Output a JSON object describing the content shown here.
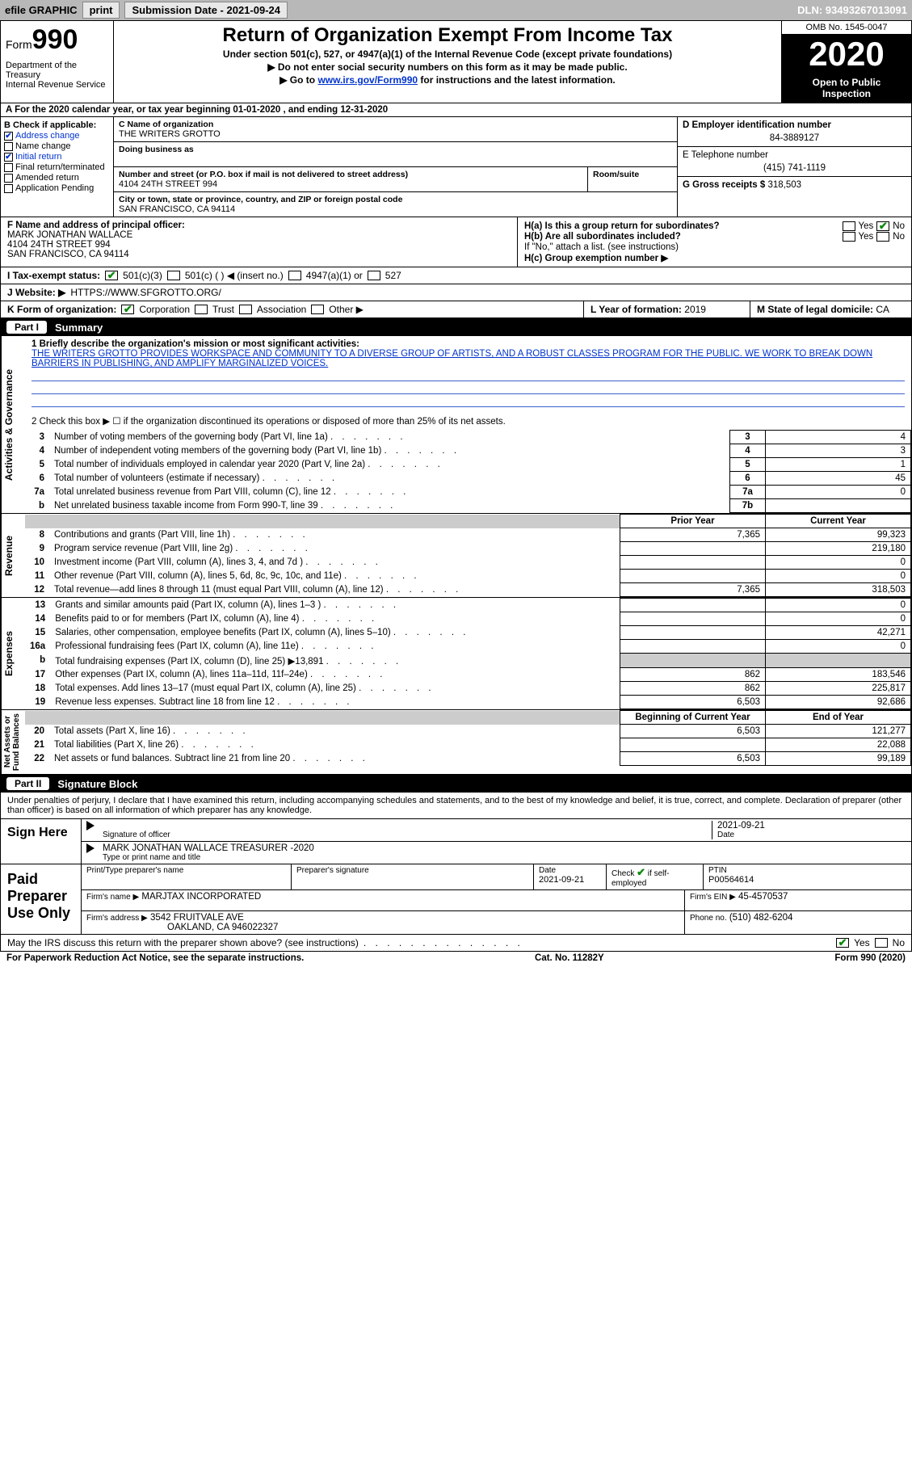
{
  "topbar": {
    "efile": "efile GRAPHIC",
    "print": "print",
    "sub_label": "Submission Date - 2021-09-24",
    "dln": "DLN: 93493267013091"
  },
  "header": {
    "form": "Form",
    "num": "990",
    "dept": "Department of the Treasury\nInternal Revenue Service",
    "title": "Return of Organization Exempt From Income Tax",
    "sub1": "Under section 501(c), 527, or 4947(a)(1) of the Internal Revenue Code (except private foundations)",
    "sub2": "▶ Do not enter social security numbers on this form as it may be made public.",
    "sub3_pre": "▶ Go to ",
    "sub3_link": "www.irs.gov/Form990",
    "sub3_post": " for instructions and the latest information.",
    "omb": "OMB No. 1545-0047",
    "year": "2020",
    "open": "Open to Public\nInspection"
  },
  "a_line": "A For the 2020 calendar year, or tax year beginning 01-01-2020    , and ending 12-31-2020",
  "b": {
    "title": "B Check if applicable:",
    "items": [
      {
        "label": "Address change",
        "checked": true,
        "blue": true
      },
      {
        "label": "Name change",
        "checked": false
      },
      {
        "label": "Initial return",
        "checked": true,
        "blue": true
      },
      {
        "label": "Final return/terminated",
        "checked": false
      },
      {
        "label": "Amended return",
        "checked": false
      },
      {
        "label": "Application Pending",
        "checked": false
      }
    ]
  },
  "c": {
    "name_lbl": "C Name of organization",
    "name": "THE WRITERS GROTTO",
    "dba_lbl": "Doing business as",
    "addr_lbl": "Number and street (or P.O. box if mail is not delivered to street address)",
    "room_lbl": "Room/suite",
    "addr": "4104 24TH STREET 994",
    "city_lbl": "City or town, state or province, country, and ZIP or foreign postal code",
    "city": "SAN FRANCISCO, CA  94114"
  },
  "d": {
    "lbl": "D Employer identification number",
    "val": "84-3889127"
  },
  "e": {
    "lbl": "E Telephone number",
    "val": "(415) 741-1119"
  },
  "g": {
    "lbl": "G Gross receipts $",
    "val": "318,503"
  },
  "f": {
    "lbl": "F Name and address of principal officer:",
    "name": "MARK JONATHAN WALLACE",
    "addr": "4104 24TH STREET 994",
    "city": "SAN FRANCISCO, CA  94114"
  },
  "h": {
    "a_lbl": "H(a)  Is this a group return for subordinates?",
    "a_yes": "Yes",
    "a_no": "No",
    "b_lbl": "H(b)  Are all subordinates included?",
    "b_yes": "Yes",
    "b_no": "No",
    "b_note": "If \"No,\" attach a list. (see instructions)",
    "c_lbl": "H(c)  Group exemption number ▶"
  },
  "i": {
    "lbl": "I    Tax-exempt status:",
    "o1": "501(c)(3)",
    "o2": "501(c) (  ) ◀ (insert no.)",
    "o3": "4947(a)(1) or",
    "o4": "527"
  },
  "j": {
    "lbl": "J   Website: ▶",
    "val": "HTTPS://WWW.SFGROTTO.ORG/"
  },
  "k": {
    "lbl": "K Form of organization:",
    "o1": "Corporation",
    "o2": "Trust",
    "o3": "Association",
    "o4": "Other ▶"
  },
  "l": {
    "lbl": "L Year of formation:",
    "val": "2019"
  },
  "m": {
    "lbl": "M State of legal domicile:",
    "val": "CA"
  },
  "part1": {
    "num": "Part I",
    "title": "Summary"
  },
  "summary": {
    "q1_lbl": "1  Briefly describe the organization's mission or most significant activities:",
    "q1_text": "THE WRITERS GROTTO PROVIDES WORKSPACE AND COMMUNITY TO A DIVERSE GROUP OF ARTISTS, AND A ROBUST CLASSES PROGRAM FOR THE PUBLIC. WE WORK TO BREAK DOWN BARRIERS IN PUBLISHING, AND AMPLIFY MARGINALIZED VOICES.",
    "q2": "2   Check this box ▶ ☐  if the organization discontinued its operations or disposed of more than 25% of its net assets."
  },
  "gov_rows": [
    {
      "n": "3",
      "t": "Number of voting members of the governing body (Part VI, line 1a)",
      "ln": "3",
      "v": "4"
    },
    {
      "n": "4",
      "t": "Number of independent voting members of the governing body (Part VI, line 1b)",
      "ln": "4",
      "v": "3"
    },
    {
      "n": "5",
      "t": "Total number of individuals employed in calendar year 2020 (Part V, line 2a)",
      "ln": "5",
      "v": "1"
    },
    {
      "n": "6",
      "t": "Total number of volunteers (estimate if necessary)",
      "ln": "6",
      "v": "45"
    },
    {
      "n": "7a",
      "t": "Total unrelated business revenue from Part VIII, column (C), line 12",
      "ln": "7a",
      "v": "0"
    },
    {
      "n": "b",
      "t": "Net unrelated business taxable income from Form 990-T, line 39",
      "ln": "7b",
      "v": ""
    }
  ],
  "py_cy": {
    "py": "Prior Year",
    "cy": "Current Year"
  },
  "rev_rows": [
    {
      "n": "8",
      "t": "Contributions and grants (Part VIII, line 1h)",
      "py": "7,365",
      "cy": "99,323"
    },
    {
      "n": "9",
      "t": "Program service revenue (Part VIII, line 2g)",
      "py": "",
      "cy": "219,180"
    },
    {
      "n": "10",
      "t": "Investment income (Part VIII, column (A), lines 3, 4, and 7d )",
      "py": "",
      "cy": "0"
    },
    {
      "n": "11",
      "t": "Other revenue (Part VIII, column (A), lines 5, 6d, 8c, 9c, 10c, and 11e)",
      "py": "",
      "cy": "0"
    },
    {
      "n": "12",
      "t": "Total revenue—add lines 8 through 11 (must equal Part VIII, column (A), line 12)",
      "py": "7,365",
      "cy": "318,503"
    }
  ],
  "exp_rows": [
    {
      "n": "13",
      "t": "Grants and similar amounts paid (Part IX, column (A), lines 1–3 )",
      "py": "",
      "cy": "0"
    },
    {
      "n": "14",
      "t": "Benefits paid to or for members (Part IX, column (A), line 4)",
      "py": "",
      "cy": "0"
    },
    {
      "n": "15",
      "t": "Salaries, other compensation, employee benefits (Part IX, column (A), lines 5–10)",
      "py": "",
      "cy": "42,271"
    },
    {
      "n": "16a",
      "t": "Professional fundraising fees (Part IX, column (A), line 11e)",
      "py": "",
      "cy": "0"
    },
    {
      "n": "b",
      "t": "Total fundraising expenses (Part IX, column (D), line 25) ▶13,891",
      "py": "grey",
      "cy": "grey"
    },
    {
      "n": "17",
      "t": "Other expenses (Part IX, column (A), lines 11a–11d, 11f–24e)",
      "py": "862",
      "cy": "183,546"
    },
    {
      "n": "18",
      "t": "Total expenses. Add lines 13–17 (must equal Part IX, column (A), line 25)",
      "py": "862",
      "cy": "225,817"
    },
    {
      "n": "19",
      "t": "Revenue less expenses. Subtract line 18 from line 12",
      "py": "6,503",
      "cy": "92,686"
    }
  ],
  "by_ey": {
    "by": "Beginning of Current Year",
    "ey": "End of Year"
  },
  "net_rows": [
    {
      "n": "20",
      "t": "Total assets (Part X, line 16)",
      "py": "6,503",
      "cy": "121,277"
    },
    {
      "n": "21",
      "t": "Total liabilities (Part X, line 26)",
      "py": "",
      "cy": "22,088"
    },
    {
      "n": "22",
      "t": "Net assets or fund balances. Subtract line 21 from line 20",
      "py": "6,503",
      "cy": "99,189"
    }
  ],
  "part2": {
    "num": "Part II",
    "title": "Signature Block"
  },
  "penalties": "Under penalties of perjury, I declare that I have examined this return, including accompanying schedules and statements, and to the best of my knowledge and belief, it is true, correct, and complete. Declaration of preparer (other than officer) is based on all information of which preparer has any knowledge.",
  "sign": {
    "left": "Sign Here",
    "sig_lbl": "Signature of officer",
    "date_lbl": "Date",
    "date_val": "2021-09-21",
    "name": "MARK JONATHAN WALLACE  TREASURER -2020",
    "name_lbl": "Type or print name and title"
  },
  "paid": {
    "left": "Paid Preparer Use Only",
    "h1": "Print/Type preparer's name",
    "h2": "Preparer's signature",
    "h3": "Date",
    "h3v": "2021-09-21",
    "h4": "Check ☑ if self-employed",
    "h5": "PTIN",
    "h5v": "P00564614",
    "firm_lbl": "Firm's name    ▶",
    "firm": "MARJTAX INCORPORATED",
    "ein_lbl": "Firm's EIN ▶",
    "ein": "45-4570537",
    "addr_lbl": "Firm's address ▶",
    "addr": "3542 FRUITVALE AVE",
    "addr2": "OAKLAND, CA  946022327",
    "phone_lbl": "Phone no.",
    "phone": "(510) 482-6204"
  },
  "may": {
    "q": "May the IRS discuss this return with the preparer shown above? (see instructions)",
    "yes": "Yes",
    "no": "No"
  },
  "footer": {
    "left": "For Paperwork Reduction Act Notice, see the separate instructions.",
    "mid": "Cat. No. 11282Y",
    "right": "Form 990 (2020)"
  },
  "vlabels": {
    "gov": "Activities & Governance",
    "rev": "Revenue",
    "exp": "Expenses",
    "net": "Net Assets or\nFund Balances"
  }
}
